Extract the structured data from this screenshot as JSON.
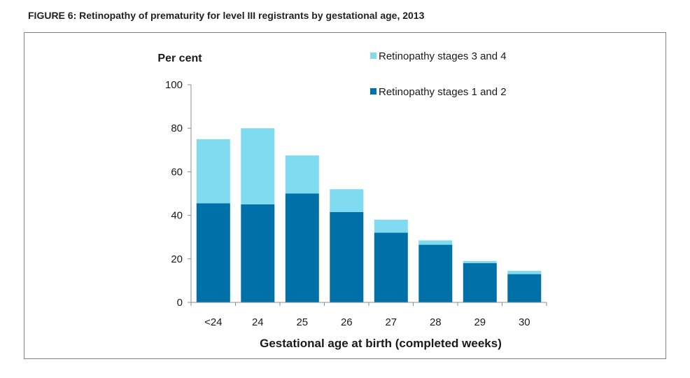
{
  "figure": {
    "title": "FIGURE 6: Retinopathy of prematurity for level III registrants by gestational age, 2013"
  },
  "chart_data": {
    "type": "bar",
    "stacked": true,
    "title": "FIGURE 6: Retinopathy of prematurity for level III registrants by gestational age, 2013",
    "xlabel": "Gestational age at birth (completed weeks)",
    "ylabel": "Per cent",
    "ylim": [
      0,
      100
    ],
    "yticks": [
      0,
      20,
      40,
      60,
      80,
      100
    ],
    "grid": false,
    "legend_position": "top-right",
    "categories": [
      "<24",
      "24",
      "25",
      "26",
      "27",
      "28",
      "29",
      "30"
    ],
    "series": [
      {
        "name": "Retinopathy stages 1 and 2",
        "color": "#0071a8",
        "values": [
          45.5,
          45,
          50,
          41.5,
          32,
          26.5,
          18,
          13
        ]
      },
      {
        "name": "Retinopathy stages 3 and 4",
        "color": "#80daf0",
        "values": [
          29.5,
          35,
          17.5,
          10.5,
          6,
          2,
          1,
          1.5
        ]
      }
    ]
  }
}
